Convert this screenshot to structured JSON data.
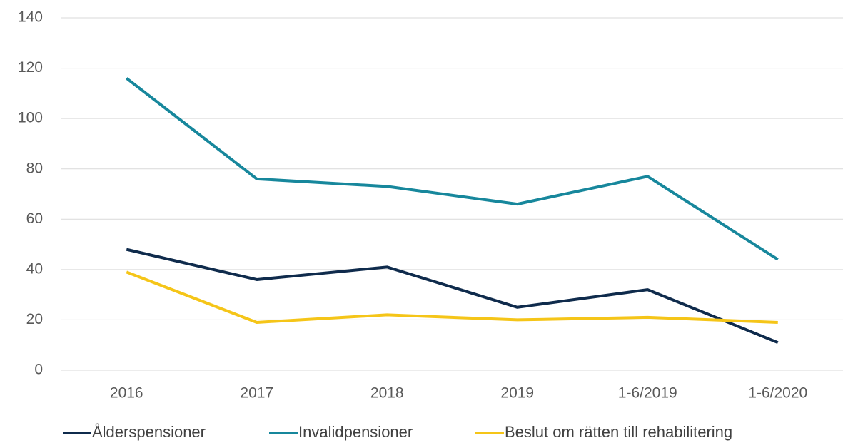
{
  "chart_data": {
    "type": "line",
    "categories": [
      "2016",
      "2017",
      "2018",
      "2019",
      "1-6/2019",
      "1-6/2020"
    ],
    "series": [
      {
        "name": "Ålderspensioner",
        "color": "#0f2b4c",
        "values": [
          48,
          36,
          41,
          25,
          32,
          11
        ]
      },
      {
        "name": "Invalidpensioner",
        "color": "#17879c",
        "values": [
          116,
          76,
          73,
          66,
          77,
          44
        ]
      },
      {
        "name": "Beslut om rätten till rehabilitering",
        "color": "#f5c518",
        "values": [
          39,
          19,
          22,
          20,
          21,
          19
        ]
      }
    ],
    "ylim": [
      0,
      140
    ],
    "yticks": [
      0,
      20,
      40,
      60,
      80,
      100,
      120,
      140
    ],
    "grid": true,
    "legend": "bottom"
  }
}
